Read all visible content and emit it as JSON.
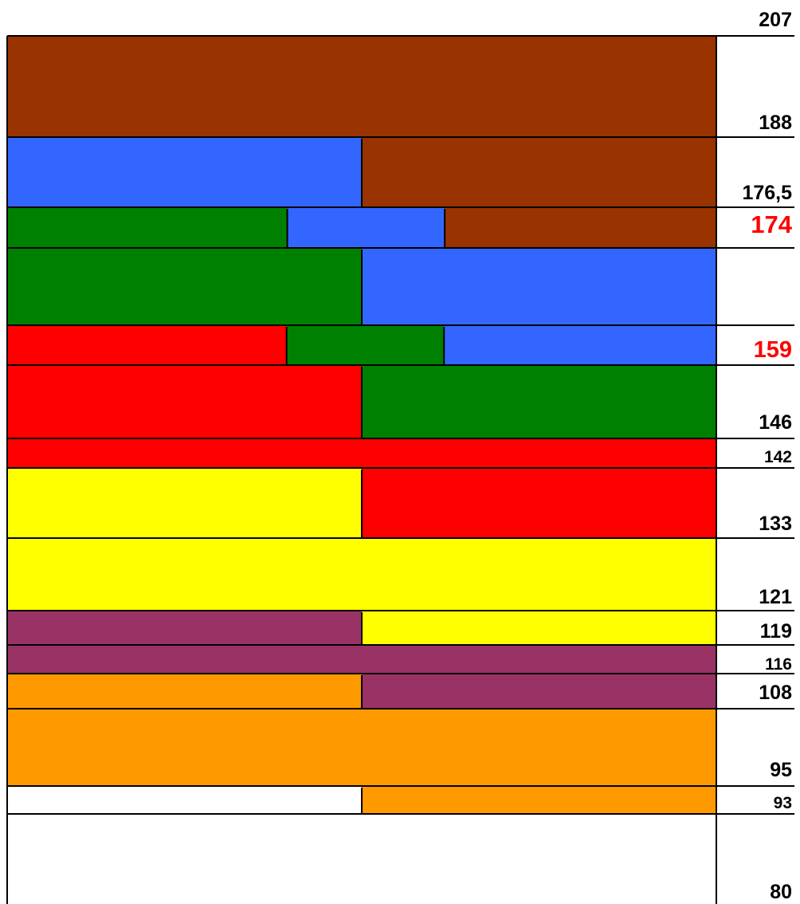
{
  "colors": {
    "brown": "#993300",
    "blue": "#3366ff",
    "green": "#008000",
    "red": "#ff0000",
    "yellow": "#ffff00",
    "plum": "#993366",
    "orange": "#ff9900",
    "white": "#ffffff",
    "line": "#000000",
    "highlight": "#ff0000"
  },
  "levels": [
    {
      "value": "207"
    },
    {
      "value": "188"
    },
    {
      "value": "176,5"
    },
    {
      "value": "174",
      "highlight": true
    },
    {
      "value": "159",
      "highlight": true
    },
    {
      "value": "146"
    },
    {
      "value": "142"
    },
    {
      "value": "133"
    },
    {
      "value": "121"
    },
    {
      "value": "119"
    },
    {
      "value": "116"
    },
    {
      "value": "108"
    },
    {
      "value": "95"
    },
    {
      "value": "93"
    },
    {
      "value": "80"
    }
  ],
  "bands": [
    {
      "segments": [
        {
          "color": "brown",
          "span": 1
        }
      ]
    },
    {
      "segments": [
        {
          "color": "blue",
          "span": 0.5
        },
        {
          "color": "brown",
          "span": 0.5
        }
      ]
    },
    {
      "segments": [
        {
          "color": "green",
          "span": 0.395
        },
        {
          "color": "blue",
          "span": 0.222
        },
        {
          "color": "brown",
          "span": 0.383
        }
      ]
    },
    {
      "segments": [
        {
          "color": "green",
          "span": 0.5
        },
        {
          "color": "blue",
          "span": 0.5
        }
      ]
    },
    {
      "segments": [
        {
          "color": "red",
          "span": 0.394
        },
        {
          "color": "green",
          "span": 0.222
        },
        {
          "color": "blue",
          "span": 0.384
        }
      ]
    },
    {
      "segments": [
        {
          "color": "red",
          "span": 0.5
        },
        {
          "color": "green",
          "span": 0.5
        }
      ]
    },
    {
      "segments": [
        {
          "color": "red",
          "span": 1
        }
      ]
    },
    {
      "segments": [
        {
          "color": "yellow",
          "span": 0.5
        },
        {
          "color": "red",
          "span": 0.5
        }
      ]
    },
    {
      "segments": [
        {
          "color": "yellow",
          "span": 1
        }
      ]
    },
    {
      "segments": [
        {
          "color": "plum",
          "span": 0.5
        },
        {
          "color": "yellow",
          "span": 0.5
        }
      ]
    },
    {
      "segments": [
        {
          "color": "plum",
          "span": 1
        }
      ]
    },
    {
      "segments": [
        {
          "color": "orange",
          "span": 0.5
        },
        {
          "color": "plum",
          "span": 0.5
        }
      ]
    },
    {
      "segments": [
        {
          "color": "orange",
          "span": 1
        }
      ]
    },
    {
      "segments": [
        {
          "color": "white",
          "span": 0.5
        },
        {
          "color": "orange",
          "span": 0.5
        }
      ]
    },
    {
      "segments": [
        {
          "color": "white",
          "span": 1
        }
      ]
    }
  ]
}
